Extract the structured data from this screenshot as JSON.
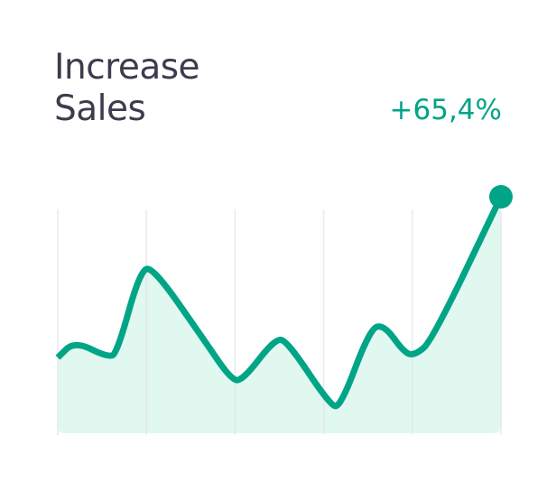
{
  "card": {
    "title_line1": "Increase",
    "title_line2": "Sales",
    "change_value": "+65,4%"
  },
  "colors": {
    "accent": "#00a486",
    "area_fill": "#e0f8ef",
    "gridline": "#e4e4ec",
    "title": "#3d3b4d"
  },
  "chart_data": {
    "type": "area",
    "title": "",
    "xlabel": "",
    "ylabel": "",
    "grid": "vertical lines",
    "xlim": [
      0,
      5
    ],
    "ylim": [
      0,
      100
    ],
    "x": [
      0,
      0.19,
      0.57,
      0.67,
      0.93,
      1.08,
      1.64,
      1.95,
      2.08,
      2.45,
      2.59,
      3.07,
      3.19,
      3.52,
      3.68,
      3.91,
      4.03,
      4.22,
      5
    ],
    "values": [
      32,
      39,
      32,
      34,
      69,
      70,
      40,
      23,
      22,
      40,
      39,
      12,
      11,
      44,
      46,
      34,
      33,
      39,
      100
    ],
    "end_marker": true
  }
}
